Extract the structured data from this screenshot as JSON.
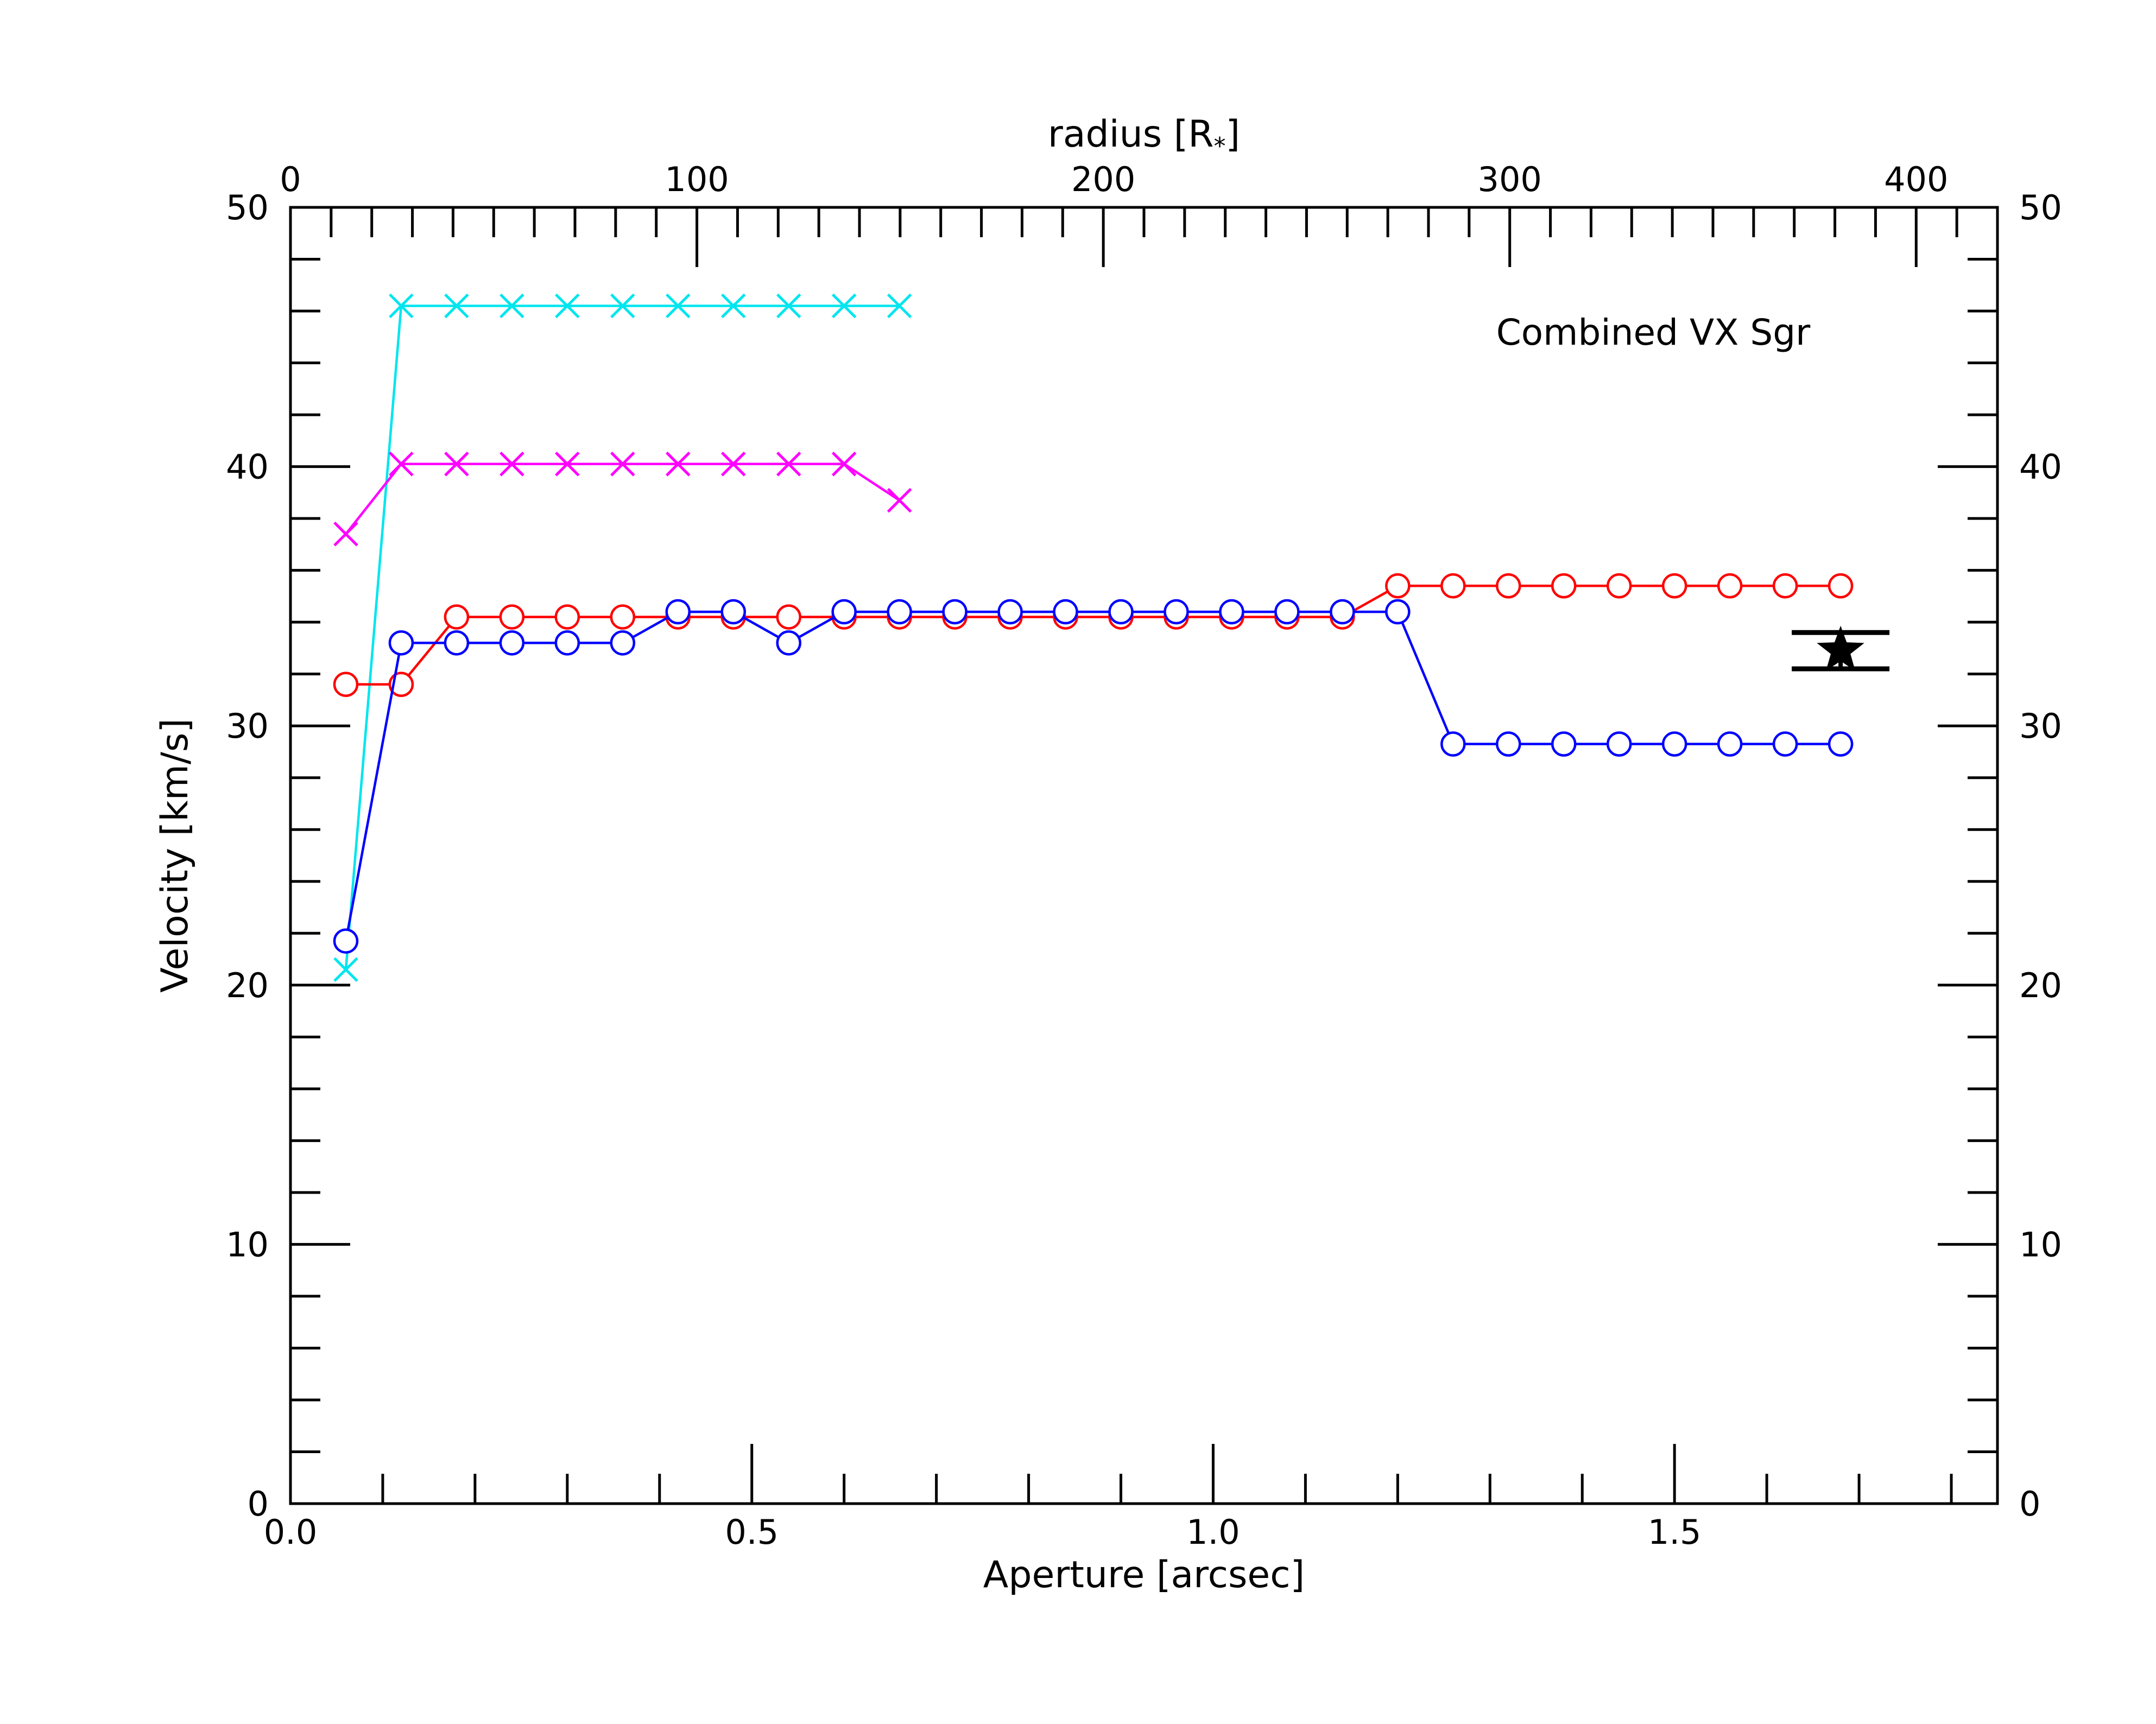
{
  "chart_data": {
    "type": "line",
    "annotation": "Combined VX Sgr",
    "xlabel": "Aperture [arcsec]",
    "ylabel": "Velocity [km/s]",
    "top_xlabel": "radius [R",
    "top_xlabel_sub": "*",
    "top_xlabel_end": "]",
    "xlim": [
      0.0,
      1.85
    ],
    "ylim": [
      0,
      50
    ],
    "top_xlim": [
      0,
      420
    ],
    "x_ticks": [
      "0.0",
      "0.5",
      "1.0",
      "1.5"
    ],
    "y_ticks": [
      "0",
      "10",
      "20",
      "30",
      "40",
      "50"
    ],
    "top_x_ticks": [
      "0",
      "100",
      "200",
      "300",
      "400"
    ],
    "grid": false,
    "series": [
      {
        "marker": "x",
        "color": "#00e5ee",
        "points": [
          [
            0.06,
            20.6
          ],
          [
            0.12,
            46.2
          ],
          [
            0.18,
            46.2
          ],
          [
            0.24,
            46.2
          ],
          [
            0.3,
            46.2
          ],
          [
            0.36,
            46.2
          ],
          [
            0.42,
            46.2
          ],
          [
            0.48,
            46.2
          ],
          [
            0.54,
            46.2
          ],
          [
            0.6,
            46.2
          ],
          [
            0.66,
            46.2
          ]
        ]
      },
      {
        "marker": "x",
        "color": "#ff00ff",
        "points": [
          [
            0.06,
            37.4
          ],
          [
            0.12,
            40.1
          ],
          [
            0.18,
            40.1
          ],
          [
            0.24,
            40.1
          ],
          [
            0.3,
            40.1
          ],
          [
            0.36,
            40.1
          ],
          [
            0.42,
            40.1
          ],
          [
            0.48,
            40.1
          ],
          [
            0.54,
            40.1
          ],
          [
            0.6,
            40.1
          ],
          [
            0.66,
            38.7
          ]
        ]
      },
      {
        "marker": "o",
        "color": "#ff0000",
        "points": [
          [
            0.06,
            31.6
          ],
          [
            0.12,
            31.6
          ],
          [
            0.18,
            34.2
          ],
          [
            0.24,
            34.2
          ],
          [
            0.3,
            34.2
          ],
          [
            0.36,
            34.2
          ],
          [
            0.42,
            34.2
          ],
          [
            0.48,
            34.2
          ],
          [
            0.54,
            34.2
          ],
          [
            0.6,
            34.2
          ],
          [
            0.66,
            34.2
          ],
          [
            0.72,
            34.2
          ],
          [
            0.78,
            34.2
          ],
          [
            0.84,
            34.2
          ],
          [
            0.9,
            34.2
          ],
          [
            0.96,
            34.2
          ],
          [
            1.02,
            34.2
          ],
          [
            1.08,
            34.2
          ],
          [
            1.14,
            34.2
          ],
          [
            1.2,
            35.4
          ],
          [
            1.26,
            35.4
          ],
          [
            1.32,
            35.4
          ],
          [
            1.38,
            35.4
          ],
          [
            1.44,
            35.4
          ],
          [
            1.5,
            35.4
          ],
          [
            1.56,
            35.4
          ],
          [
            1.62,
            35.4
          ],
          [
            1.68,
            35.4
          ]
        ]
      },
      {
        "marker": "o",
        "color": "#0000ff",
        "points": [
          [
            0.06,
            21.7
          ],
          [
            0.12,
            33.2
          ],
          [
            0.18,
            33.2
          ],
          [
            0.24,
            33.2
          ],
          [
            0.3,
            33.2
          ],
          [
            0.36,
            33.2
          ],
          [
            0.42,
            34.4
          ],
          [
            0.48,
            34.4
          ],
          [
            0.54,
            33.2
          ],
          [
            0.6,
            34.4
          ],
          [
            0.66,
            34.4
          ],
          [
            0.72,
            34.4
          ],
          [
            0.78,
            34.4
          ],
          [
            0.84,
            34.4
          ],
          [
            0.9,
            34.4
          ],
          [
            0.96,
            34.4
          ],
          [
            1.02,
            34.4
          ],
          [
            1.08,
            34.4
          ],
          [
            1.14,
            34.4
          ],
          [
            1.2,
            34.4
          ],
          [
            1.26,
            29.3
          ],
          [
            1.32,
            29.3
          ],
          [
            1.38,
            29.3
          ],
          [
            1.44,
            29.3
          ],
          [
            1.5,
            29.3
          ],
          [
            1.56,
            29.3
          ],
          [
            1.62,
            29.3
          ],
          [
            1.68,
            29.3
          ]
        ]
      }
    ],
    "reference_point": {
      "marker": "star",
      "color": "#000000",
      "x": 1.68,
      "y": 32.9,
      "error_low": 32.2,
      "error_high": 33.6
    }
  }
}
